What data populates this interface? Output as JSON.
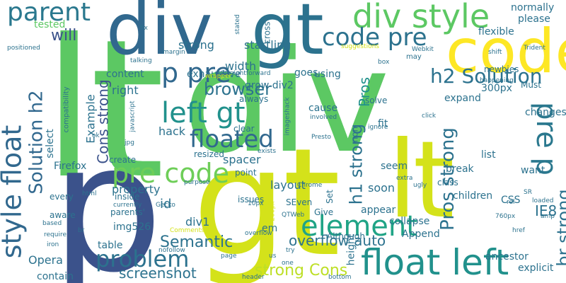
{
  "word_cloud": {
    "background": "#ffffff",
    "words": [
      {
        "text": "lt",
        "color": "#5cc863"
      },
      {
        "text": "div",
        "color": "#5cc863"
      },
      {
        "text": "p",
        "color": "#3b528b"
      },
      {
        "text": "gt",
        "color": "#d4e21a"
      },
      {
        "text": "lt",
        "color": "#d4e21a"
      },
      {
        "text": "div",
        "color": "#31688e"
      },
      {
        "text": "gt",
        "color": "#2c728e"
      },
      {
        "text": "code",
        "color": "#fde725"
      },
      {
        "text": "div style",
        "color": "#5cc863"
      },
      {
        "text": "style float",
        "color": "#31688e"
      },
      {
        "text": "float left",
        "color": "#21918c"
      },
      {
        "text": "parent",
        "color": "#2a788e"
      },
      {
        "text": "code pre",
        "color": "#2c728e"
      },
      {
        "text": "pre code",
        "color": "#6ece58"
      },
      {
        "text": "p pre",
        "color": "#31688e"
      },
      {
        "text": "left gt",
        "color": "#21918c"
      },
      {
        "text": "floated",
        "color": "#31688e"
      },
      {
        "text": "element",
        "color": "#20a486"
      },
      {
        "text": "pre p",
        "color": "#2a788e"
      },
      {
        "text": "problem",
        "color": "#2c728e"
      },
      {
        "text": "browser",
        "color": "#2c728e"
      },
      {
        "text": "h2 Solution",
        "color": "#2c728e"
      },
      {
        "text": "Solution h2",
        "color": "#31688e"
      },
      {
        "text": "Pros strong",
        "color": "#2c728e"
      },
      {
        "text": "strong Cons",
        "color": "#bddf26"
      },
      {
        "text": "h1 strong",
        "color": "#2c728e"
      },
      {
        "text": "br strong",
        "color": "#2c728e"
      },
      {
        "text": "Cons strong",
        "color": "#3b528b"
      },
      {
        "text": "overflow auto",
        "color": "#2c728e"
      },
      {
        "text": "screenshot",
        "color": "#2c728e"
      },
      {
        "text": "Semantic",
        "color": "#2c728e"
      },
      {
        "text": "Pros",
        "color": "#21918c"
      },
      {
        "text": "will",
        "color": "#3b528b"
      },
      {
        "text": "tested",
        "color": "#5cc863"
      },
      {
        "text": "strong",
        "color": "#2c728e"
      },
      {
        "text": "startling",
        "color": "#2c728e"
      },
      {
        "text": "please",
        "color": "#2c728e"
      },
      {
        "text": "flexible",
        "color": "#2c728e"
      },
      {
        "text": "content",
        "color": "#2c728e"
      },
      {
        "text": "width",
        "color": "#2c728e"
      },
      {
        "text": "goes",
        "color": "#2c728e"
      },
      {
        "text": "right",
        "color": "#2c728e"
      },
      {
        "text": "exhaustive",
        "color": "#2c728e"
      },
      {
        "text": "grow div2",
        "color": "#2c728e"
      },
      {
        "text": "Example",
        "color": "#2c728e"
      },
      {
        "text": "select",
        "color": "#2c728e"
      },
      {
        "text": "hack",
        "color": "#2c728e"
      },
      {
        "text": "spacer",
        "color": "#2c728e"
      },
      {
        "text": "Firefox",
        "color": "#2c728e"
      },
      {
        "text": "property",
        "color": "#2c728e"
      },
      {
        "text": "layout",
        "color": "#2c728e"
      },
      {
        "text": "seem",
        "color": "#2c728e"
      },
      {
        "text": "soon",
        "color": "#2c728e"
      },
      {
        "text": "id",
        "color": "#2c728e"
      },
      {
        "text": "img526",
        "color": "#2c728e"
      },
      {
        "text": "div1",
        "color": "#2c728e"
      },
      {
        "text": "IE8",
        "color": "#2c728e"
      },
      {
        "text": "CSS",
        "color": "#2c728e"
      },
      {
        "text": "height",
        "color": "#2c728e"
      },
      {
        "text": "Opera",
        "color": "#2c728e"
      },
      {
        "text": "table",
        "color": "#2c728e"
      },
      {
        "text": "contain",
        "color": "#2c728e"
      },
      {
        "text": "ancestor",
        "color": "#2c728e"
      },
      {
        "text": "explicit",
        "color": "#2c728e"
      },
      {
        "text": "appear",
        "color": "#2c728e"
      },
      {
        "text": "children",
        "color": "#2c728e"
      },
      {
        "text": "collapse",
        "color": "#2c728e"
      },
      {
        "text": "Append",
        "color": "#2c728e"
      },
      {
        "text": "Although",
        "color": "#2c728e"
      },
      {
        "text": "em",
        "color": "#2c728e"
      },
      {
        "text": "changes",
        "color": "#2c728e"
      },
      {
        "text": "expand",
        "color": "#2c728e"
      },
      {
        "text": "300px",
        "color": "#2c728e"
      },
      {
        "text": "Must",
        "color": "#2c728e"
      },
      {
        "text": "normally",
        "color": "#2c728e"
      },
      {
        "text": "want",
        "color": "#2c728e"
      },
      {
        "text": "list",
        "color": "#2c728e"
      },
      {
        "text": "class",
        "color": "#2c728e"
      },
      {
        "text": "break",
        "color": "#2c728e"
      },
      {
        "text": "solve",
        "color": "#2c728e"
      },
      {
        "text": "using",
        "color": "#2c728e"
      },
      {
        "text": "cause",
        "color": "#2c728e"
      },
      {
        "text": "fit",
        "color": "#2c728e"
      },
      {
        "text": "clear",
        "color": "#2c728e"
      },
      {
        "text": "resized",
        "color": "#2c728e"
      },
      {
        "text": "create",
        "color": "#2c728e"
      },
      {
        "text": "inside",
        "color": "#2c728e"
      },
      {
        "text": "issues",
        "color": "#2c728e"
      },
      {
        "text": "every",
        "color": "#2c728e"
      },
      {
        "text": "aware",
        "color": "#2c728e"
      },
      {
        "text": "parents'",
        "color": "#2c728e"
      },
      {
        "text": "Give",
        "color": "#2c728e"
      },
      {
        "text": "SEven",
        "color": "#2c728e"
      },
      {
        "text": "point",
        "color": "#2c728e"
      },
      {
        "text": "Set",
        "color": "#2c728e"
      },
      {
        "text": "non",
        "color": "#2c728e"
      },
      {
        "text": "newbies",
        "color": "#2c728e"
      },
      {
        "text": "always",
        "color": "#2c728e"
      },
      {
        "text": "cross",
        "color": "#2c728e"
      },
      {
        "text": "may",
        "color": "#2c728e"
      },
      {
        "text": "Straightforward",
        "color": "#2c728e"
      },
      {
        "text": "margin",
        "color": "#2c728e"
      },
      {
        "text": "compatibility",
        "color": "#2c728e"
      },
      {
        "text": "Trident",
        "color": "#2c728e"
      },
      {
        "text": "Webkit",
        "color": "#2c728e"
      },
      {
        "text": "suggestions",
        "color": "#2c728e"
      },
      {
        "text": "shift",
        "color": "#2c728e"
      },
      {
        "text": "box",
        "color": "#2c728e"
      },
      {
        "text": "happening",
        "color": "#2c728e"
      },
      {
        "text": "stated",
        "color": "#2c728e"
      },
      {
        "text": "talking",
        "color": "#2c728e"
      },
      {
        "text": "wrapper",
        "color": "#2c728e"
      },
      {
        "text": "positioned",
        "color": "#2c728e"
      },
      {
        "text": "fix",
        "color": "#2c728e"
      },
      {
        "text": "javascript",
        "color": "#2c728e"
      },
      {
        "text": "imageshack",
        "color": "#2c728e"
      },
      {
        "text": "involved",
        "color": "#2c728e"
      },
      {
        "text": "ignore",
        "color": "#2c728e"
      },
      {
        "text": "click",
        "color": "#2c728e"
      },
      {
        "text": "Presto",
        "color": "#2c728e"
      },
      {
        "text": "ok",
        "color": "#2c728e"
      },
      {
        "text": "jpg",
        "color": "#2c728e"
      },
      {
        "text": "exists",
        "color": "#2c728e"
      },
      {
        "text": "Chrome",
        "color": "#2c728e"
      },
      {
        "text": "extra",
        "color": "#2c728e"
      },
      {
        "text": "ugly",
        "color": "#2c728e"
      },
      {
        "text": "SR",
        "color": "#2c728e"
      },
      {
        "text": "rel",
        "color": "#2c728e"
      },
      {
        "text": "loaded",
        "color": "#2c728e"
      },
      {
        "text": "amp",
        "color": "#2c728e"
      },
      {
        "text": "760px",
        "color": "#2c728e"
      },
      {
        "text": "href",
        "color": "#2c728e"
      },
      {
        "text": "html",
        "color": "#2c728e"
      },
      {
        "text": "purpose",
        "color": "#2c728e"
      },
      {
        "text": "currently",
        "color": "#2c728e"
      },
      {
        "text": "Gecko",
        "color": "#2c728e"
      },
      {
        "text": "10px",
        "color": "#2c728e"
      },
      {
        "text": "200px",
        "color": "#2c728e"
      },
      {
        "text": "QTWeb",
        "color": "#2c728e"
      },
      {
        "text": "based",
        "color": "#2c728e"
      },
      {
        "text": "require",
        "color": "#2c728e"
      },
      {
        "text": "iron",
        "color": "#2c728e"
      },
      {
        "text": "br",
        "color": "#2c728e"
      },
      {
        "text": "Comments",
        "color": "#2c728e"
      },
      {
        "text": "nofollow",
        "color": "#2c728e"
      },
      {
        "text": "page",
        "color": "#2c728e"
      },
      {
        "text": "overflow",
        "color": "#2c728e"
      },
      {
        "text": "try",
        "color": "#2c728e"
      },
      {
        "text": "one",
        "color": "#2c728e"
      },
      {
        "text": "us",
        "color": "#2c728e"
      },
      {
        "text": "header",
        "color": "#2c728e"
      },
      {
        "text": "bottom",
        "color": "#2c728e"
      }
    ]
  }
}
